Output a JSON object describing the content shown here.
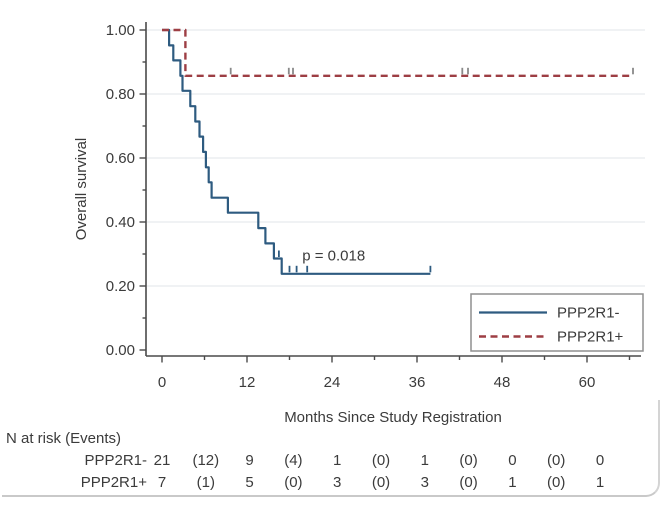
{
  "chart_data": {
    "type": "line",
    "subtype": "kaplan-meier-step",
    "title": "",
    "xlabel": "Months Since Study Registration",
    "ylabel": "Overall survival",
    "xlim": [
      0,
      68
    ],
    "ylim": [
      0,
      1.0
    ],
    "grid": "horizontal",
    "legend_position": "bottom-right",
    "x_ticks": [
      0,
      12,
      24,
      36,
      48,
      60
    ],
    "x_minor_ticks": [
      6,
      18,
      30,
      42,
      54,
      66
    ],
    "y_ticks": [
      {
        "v": 0.0,
        "label": "0.00"
      },
      {
        "v": 0.2,
        "label": "0.20"
      },
      {
        "v": 0.4,
        "label": "0.40"
      },
      {
        "v": 0.6,
        "label": "0.60"
      },
      {
        "v": 0.8,
        "label": "0.80"
      },
      {
        "v": 1.0,
        "label": "1.00"
      }
    ],
    "y_minor_ticks": [
      0.1,
      0.3,
      0.5,
      0.7,
      0.9
    ],
    "gridlines_y": [
      0.2,
      0.4,
      0.6,
      0.8,
      1.0
    ],
    "annotation": {
      "text": "p = 0.018",
      "t": 19.8,
      "s": 0.295
    },
    "series": [
      {
        "name": "PPP2R1-",
        "color": "#2e5b80",
        "line_style": "solid",
        "start": [
          0,
          1.0
        ],
        "drops": [
          [
            1.0,
            0.952
          ],
          [
            1.6,
            0.905
          ],
          [
            2.6,
            0.857
          ],
          [
            2.9,
            0.81
          ],
          [
            4.0,
            0.762
          ],
          [
            4.7,
            0.714
          ],
          [
            5.3,
            0.667
          ],
          [
            5.8,
            0.619
          ],
          [
            6.2,
            0.571
          ],
          [
            6.6,
            0.524
          ],
          [
            7.0,
            0.476
          ],
          [
            9.3,
            0.429
          ],
          [
            13.6,
            0.381
          ],
          [
            14.6,
            0.333
          ],
          [
            15.8,
            0.286
          ],
          [
            16.9,
            0.238
          ]
        ],
        "end_time": 37.9,
        "censor_color": "#2e5b80",
        "censor_marks": [
          {
            "t": 16.5,
            "s": 0.286
          },
          {
            "t": 18.0,
            "s": 0.238
          },
          {
            "t": 19.0,
            "s": 0.238
          },
          {
            "t": 20.5,
            "s": 0.238
          },
          {
            "t": 37.9,
            "s": 0.238
          }
        ]
      },
      {
        "name": "PPP2R1+",
        "color": "#9d3e44",
        "line_style": "dashed",
        "start": [
          0,
          1.0
        ],
        "drops": [
          [
            3.3,
            0.857
          ]
        ],
        "end_time": 66.5,
        "censor_color": "#898989",
        "censor_marks": [
          {
            "t": 9.7,
            "s": 0.857
          },
          {
            "t": 17.9,
            "s": 0.857
          },
          {
            "t": 18.5,
            "s": 0.857
          },
          {
            "t": 42.4,
            "s": 0.857
          },
          {
            "t": 43.2,
            "s": 0.857
          },
          {
            "t": 66.5,
            "s": 0.857
          }
        ]
      }
    ],
    "risk_table": {
      "header": "N at risk (Events)",
      "time_points": [
        0,
        6,
        12,
        18,
        24,
        30,
        36,
        42,
        48,
        54,
        60
      ],
      "rows": [
        {
          "label": "PPP2R1-",
          "values": [
            "21",
            "(12)",
            "9",
            "(4)",
            "1",
            "(0)",
            "1",
            "(0)",
            "0",
            "(0)",
            "0"
          ]
        },
        {
          "label": "PPP2R1+",
          "values": [
            "7",
            "(1)",
            "5",
            "(0)",
            "3",
            "(0)",
            "3",
            "(0)",
            "1",
            "(0)",
            "1"
          ]
        }
      ]
    }
  }
}
